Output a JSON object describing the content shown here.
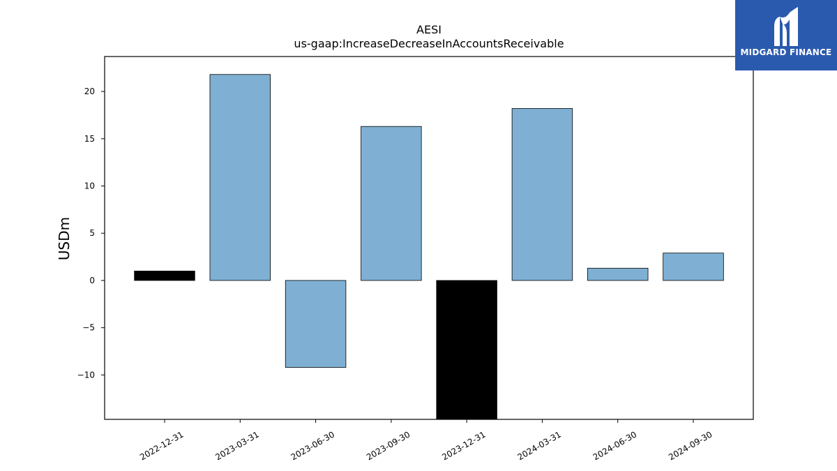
{
  "chart_data": {
    "type": "bar",
    "title": "AESI",
    "subtitle": "us-gaap:IncreaseDecreaseInAccountsReceivable",
    "ylabel": "USDm",
    "xlabel": "",
    "categories": [
      "2022-12-31",
      "2023-03-31",
      "2023-06-30",
      "2023-09-30",
      "2023-12-31",
      "2024-03-31",
      "2024-06-30",
      "2024-09-30"
    ],
    "values": [
      1.0,
      21.8,
      -9.2,
      16.3,
      -14.7,
      18.2,
      1.3,
      2.9
    ],
    "bar_colors": [
      "#000000",
      "#7fb0d3",
      "#7fb0d3",
      "#7fb0d3",
      "#000000",
      "#7fb0d3",
      "#7fb0d3",
      "#7fb0d3"
    ],
    "yticks": [
      -10,
      -5,
      0,
      5,
      10,
      15,
      20
    ],
    "ytick_labels": [
      "−10",
      "−5",
      "0",
      "5",
      "10",
      "15",
      "20"
    ],
    "ylim": [
      -14.7,
      23.7
    ],
    "grid": false
  },
  "logo": {
    "text": "MIDGARD FINANCE",
    "color": "#2a5aad"
  }
}
